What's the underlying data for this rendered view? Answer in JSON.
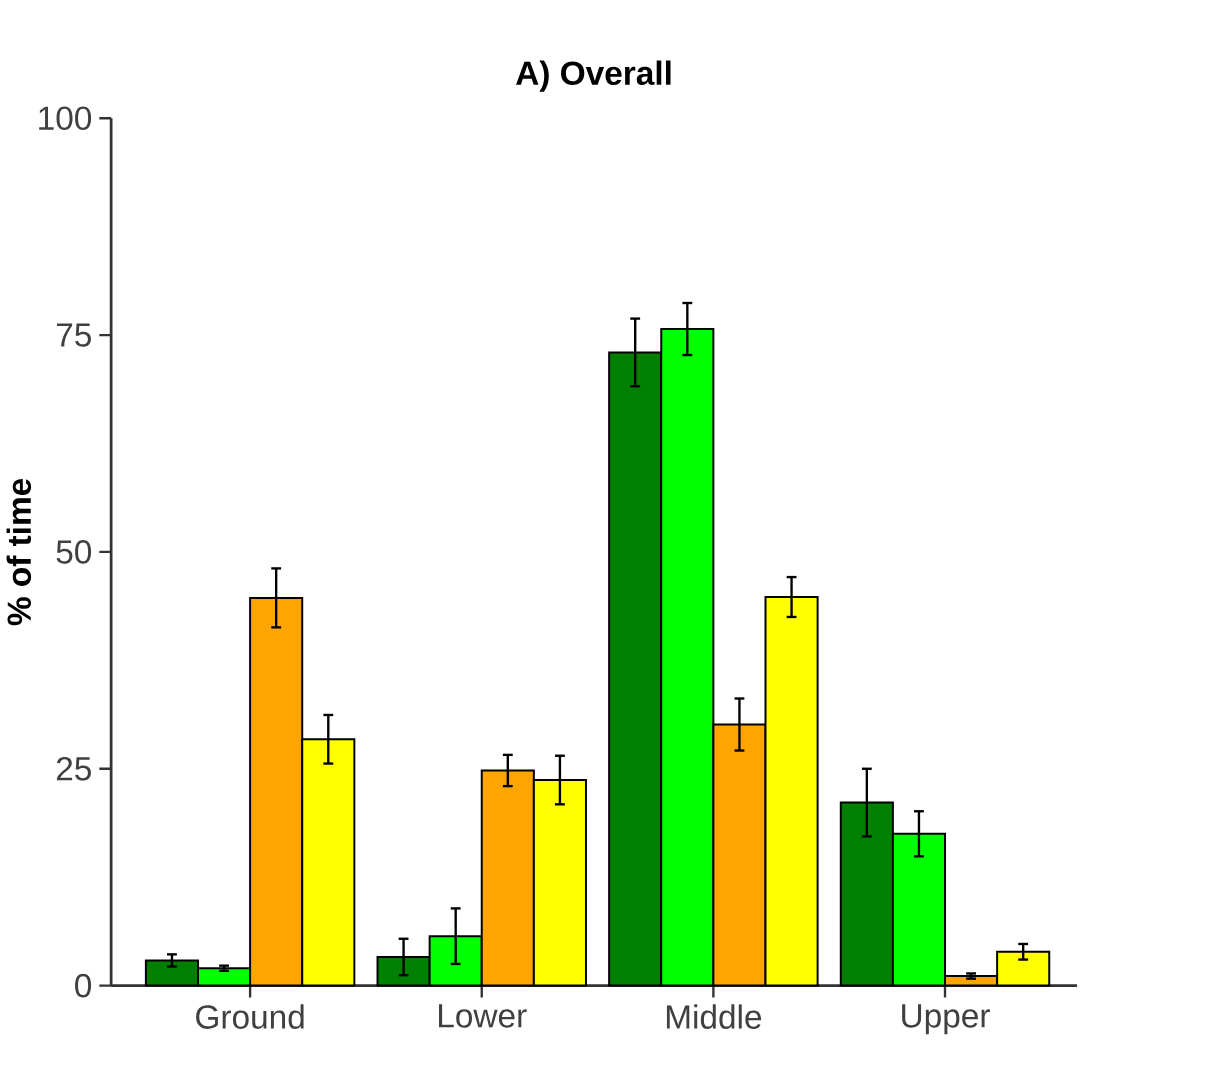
{
  "chart_data": {
    "type": "bar",
    "title": "A) Overall",
    "ylabel": "% of time",
    "categories": [
      "Ground",
      "Lower",
      "Middle",
      "Upper"
    ],
    "series": [
      {
        "color": "#008000",
        "values": [
          2.9,
          3.3,
          73.0,
          21.1
        ],
        "errors": [
          0.7,
          2.1,
          3.9,
          3.9
        ]
      },
      {
        "color": "#00ff00",
        "values": [
          2.0,
          5.7,
          75.7,
          17.5
        ],
        "errors": [
          0.3,
          3.2,
          3.0,
          2.6
        ]
      },
      {
        "color": "#ffa500",
        "values": [
          44.7,
          24.8,
          30.1,
          1.1
        ],
        "errors": [
          3.4,
          1.8,
          3.0,
          0.3
        ]
      },
      {
        "color": "#ffff00",
        "values": [
          28.4,
          23.7,
          44.8,
          3.9
        ],
        "errors": [
          2.8,
          2.8,
          2.3,
          0.9
        ]
      }
    ],
    "ylim": [
      0,
      100
    ],
    "yticks": [
      0,
      25,
      50,
      75,
      100
    ]
  }
}
